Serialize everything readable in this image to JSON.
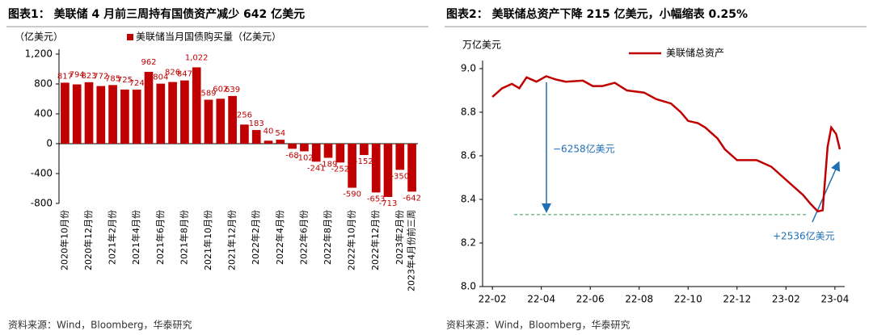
{
  "chart_data": [
    {
      "type": "bar",
      "title": "图表1： 美联储 4 月前三周持有国债资产减少 642 亿美元",
      "y_label": "（亿美元）",
      "source": "资料来源：Wind，Bloomberg，华泰研究",
      "categories": [
        "2020年10月份",
        null,
        "2020年12月份",
        null,
        "2021年2月份",
        null,
        "2021年4月份",
        null,
        "2021年6月份",
        null,
        "2021年8月份",
        null,
        "2021年10月份",
        null,
        "2021年12月份",
        null,
        "2022年2月份",
        null,
        "2022年4月份",
        null,
        "2022年6月份",
        null,
        "2022年8月份",
        null,
        "2022年10月份",
        null,
        "2022年12月份",
        null,
        "2023年2月份",
        "2023年4月份前三周"
      ],
      "series": [
        {
          "name": "美联储当月国债购买量（亿美元）",
          "color": "#c00000",
          "values": [
            817,
            794,
            823,
            772,
            785,
            725,
            724,
            962,
            804,
            826,
            847,
            1022,
            589,
            602,
            639,
            256,
            183,
            40,
            54,
            -68,
            -102,
            -241,
            -189,
            -252,
            -590,
            -152,
            -653,
            -713,
            -350,
            -642
          ],
          "value_labels": [
            "817",
            "794",
            "823",
            "772",
            "785",
            "725",
            "724",
            "962",
            "804",
            "826",
            "847",
            "1,022",
            "589",
            "602",
            "639",
            "256",
            "183",
            "40",
            "54",
            "-68",
            "-102",
            "-241",
            "-189",
            "-252",
            "-590",
            "-152",
            "-653",
            "-713",
            "-350",
            "-642"
          ]
        }
      ],
      "ylim": [
        -800,
        1200
      ],
      "yticks": [
        -800,
        -400,
        0,
        400,
        800,
        {
          "value": 1200,
          "label": "1,200"
        }
      ]
    },
    {
      "type": "line",
      "title": "图表2： 美联储总资产下降 215 亿美元，小幅缩表 0.25%",
      "y_label": "万亿美元",
      "source": "资料来源：Wind，Bloomberg，华泰研究",
      "x": [
        0,
        0.4,
        0.8,
        1.1,
        1.4,
        1.8,
        2.2,
        2.6,
        3,
        3.7,
        4.1,
        4.5,
        5,
        5.5,
        6.2,
        6.7,
        7.3,
        7.7,
        8,
        8.4,
        8.7,
        9.2,
        9.5,
        10,
        10.8,
        11.4,
        11.9,
        12.3,
        12.7,
        13,
        13.3,
        13.5,
        13.7,
        13.85,
        14.05,
        14.2
      ],
      "series": [
        {
          "name": "美联储总资产",
          "color": "#c00000",
          "values": [
            8.87,
            8.91,
            8.93,
            8.91,
            8.96,
            8.94,
            8.965,
            8.95,
            8.94,
            8.945,
            8.92,
            8.92,
            8.935,
            8.9,
            8.89,
            8.86,
            8.84,
            8.8,
            8.76,
            8.75,
            8.73,
            8.68,
            8.63,
            8.58,
            8.58,
            8.55,
            8.5,
            8.46,
            8.42,
            8.38,
            8.345,
            8.35,
            8.64,
            8.73,
            8.7,
            8.63
          ]
        }
      ],
      "xlim": [
        -0.4,
        14.4
      ],
      "xticks": [
        {
          "value": 0,
          "label": "22-02"
        },
        {
          "value": 2,
          "label": "22-04"
        },
        {
          "value": 4,
          "label": "22-06"
        },
        {
          "value": 6,
          "label": "22-08"
        },
        {
          "value": 8,
          "label": "22-10"
        },
        {
          "value": 10,
          "label": "22-12"
        },
        {
          "value": 12,
          "label": "23-02"
        },
        {
          "value": 14,
          "label": "23-04"
        }
      ],
      "ylim": [
        8.0,
        9.0
      ],
      "yticks": [
        {
          "value": 8.0,
          "label": "8.0"
        },
        8.2,
        8.4,
        8.6,
        8.8,
        {
          "value": 9.0,
          "label": "9.0"
        }
      ],
      "reference_line": 8.33,
      "annotations": [
        "−6258亿美元",
        "+2536亿美元"
      ]
    }
  ]
}
